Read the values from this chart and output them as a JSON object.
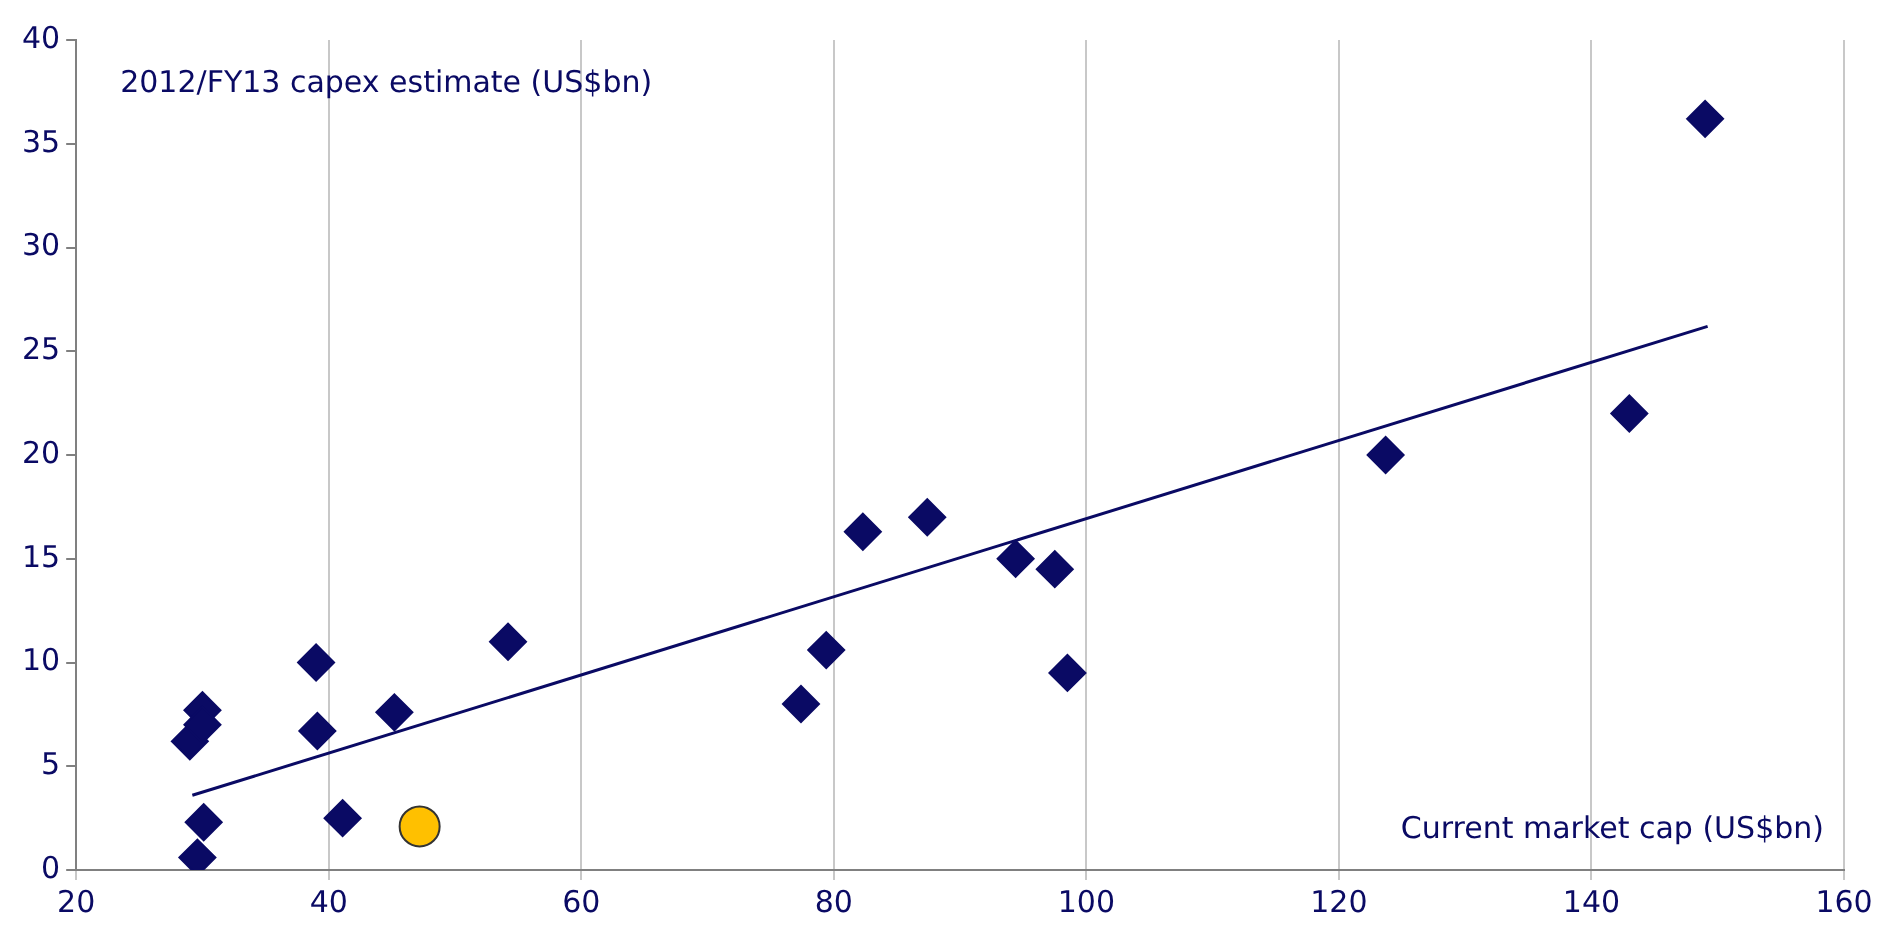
{
  "chart_data": {
    "type": "scatter",
    "xlabel": "Current market cap (US$bn)",
    "ylabel": "2012/FY13 capex estimate (US$bn)",
    "xlim": [
      20,
      160
    ],
    "xticks": [
      20,
      40,
      60,
      80,
      100,
      120,
      140,
      160
    ],
    "ylim": [
      0,
      40
    ],
    "yticks": [
      0,
      5,
      10,
      15,
      20,
      25,
      30,
      35,
      40
    ],
    "grid": "x",
    "legend": false,
    "marker": "diamond",
    "series": [
      {
        "color": "#0a0a64",
        "x": [
          29.6,
          30.1,
          29,
          30,
          30,
          39,
          39.1,
          41.1,
          45.2,
          54.2,
          77.4,
          79.4,
          82.3,
          87.4,
          94.4,
          97.5,
          98.5,
          123.7,
          143,
          149
        ],
        "values": [
          0.6,
          2.3,
          6.2,
          7.7,
          7.0,
          10,
          6.7,
          2.5,
          7.6,
          11,
          8,
          10.6,
          16.3,
          17,
          15,
          14.5,
          9.5,
          20,
          22,
          36.2
        ]
      },
      {
        "color": "#ffc000",
        "marker": "circle",
        "x": [
          47.2
        ],
        "values": [
          2.1
        ]
      },
      {
        "type": "line",
        "color": "#0a0a64",
        "marker": "none",
        "x": [
          29.2,
          149.2
        ],
        "values": [
          3.6,
          26.2
        ]
      }
    ]
  }
}
